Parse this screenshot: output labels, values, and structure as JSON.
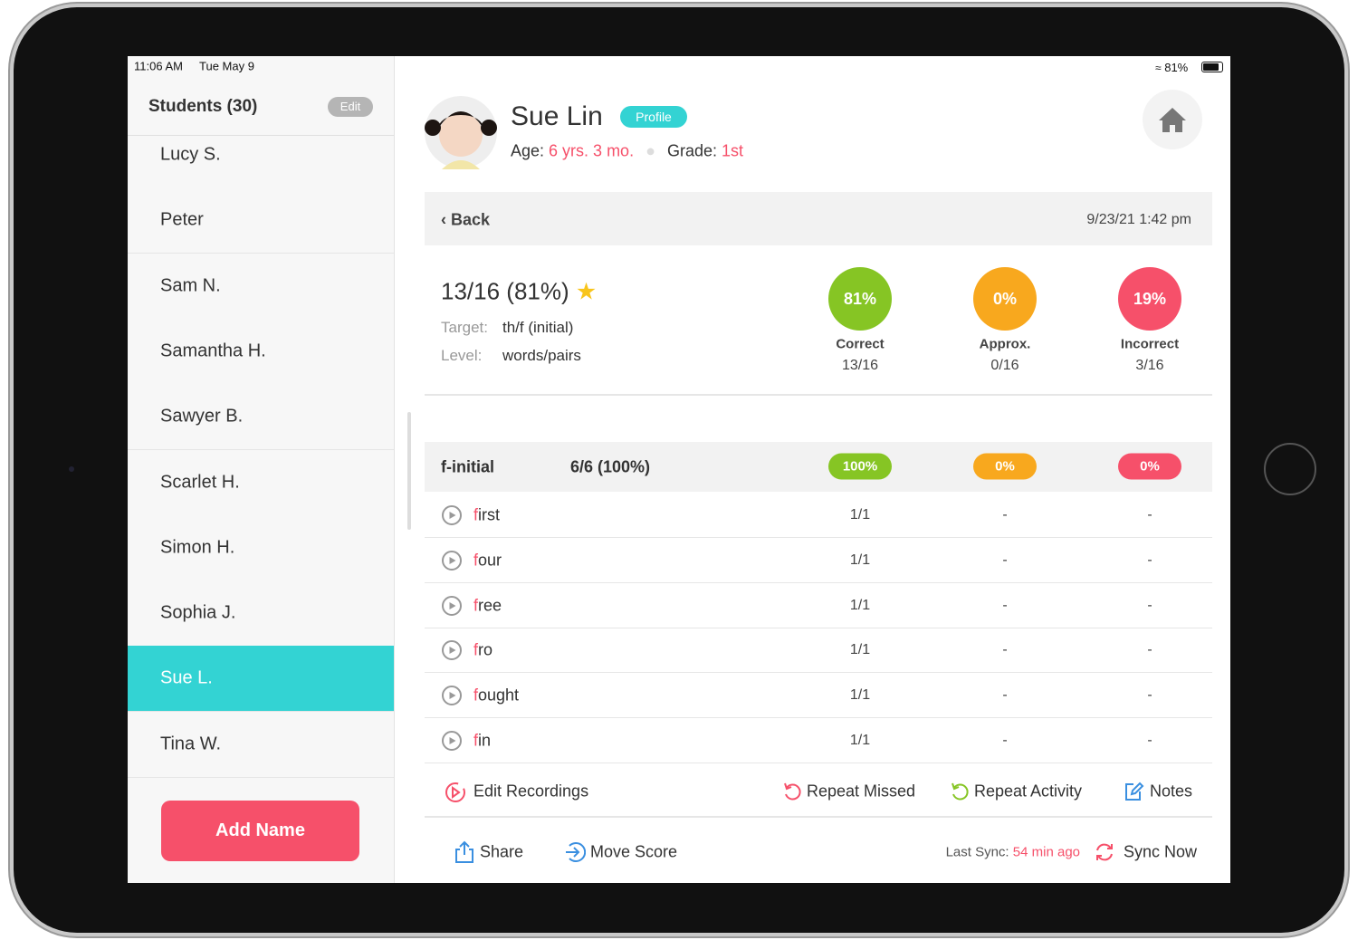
{
  "status_bar": {
    "time": "11:06 AM",
    "date": "Tue May 9",
    "battery": "81%"
  },
  "sidebar": {
    "title": "Students (30)",
    "edit": "Edit",
    "students": [
      {
        "name": "Lucy S."
      },
      {
        "name": "Peter"
      },
      {
        "name": "Sam N."
      },
      {
        "name": "Samantha H."
      },
      {
        "name": "Sawyer B."
      },
      {
        "name": "Scarlet H."
      },
      {
        "name": "Simon H."
      },
      {
        "name": "Sophia J."
      },
      {
        "name": "Sue L.",
        "selected": true
      },
      {
        "name": "Tina W."
      }
    ],
    "add_button": "Add Name"
  },
  "profile": {
    "name": "Sue Lin",
    "badge": "Profile",
    "age_label": "Age:",
    "age": "6 yrs. 3 mo.",
    "grade_label": "Grade:",
    "grade": "1st"
  },
  "session": {
    "back": "Back",
    "timestamp": "9/23/21 1:42 pm",
    "score": "13/16 (81%)",
    "target_label": "Target:",
    "target": "th/f (initial)",
    "level_label": "Level:",
    "level": "words/pairs",
    "stats": [
      {
        "percent": "81%",
        "label": "Correct",
        "count": "13/16",
        "color": "#86c524"
      },
      {
        "percent": "0%",
        "label": "Approx.",
        "count": "0/16",
        "color": "#f8a81e"
      },
      {
        "percent": "19%",
        "label": "Incorrect",
        "count": "3/16",
        "color": "#f6506a"
      }
    ]
  },
  "group": {
    "name": "f-initial",
    "score": "6/6 (100%)",
    "pills": [
      "100%",
      "0%",
      "0%"
    ]
  },
  "words": [
    {
      "target": "f",
      "rest": "irst",
      "correct": "1/1",
      "approx": "-",
      "incorrect": "-"
    },
    {
      "target": "f",
      "rest": "our",
      "correct": "1/1",
      "approx": "-",
      "incorrect": "-"
    },
    {
      "target": "f",
      "rest": "ree",
      "correct": "1/1",
      "approx": "-",
      "incorrect": "-"
    },
    {
      "target": "f",
      "rest": "ro",
      "correct": "1/1",
      "approx": "-",
      "incorrect": "-"
    },
    {
      "target": "f",
      "rest": "ought",
      "correct": "1/1",
      "approx": "-",
      "incorrect": "-"
    },
    {
      "target": "f",
      "rest": "in",
      "correct": "1/1",
      "approx": "-",
      "incorrect": "-"
    }
  ],
  "actions": [
    "Edit Recordings",
    "Repeat Missed",
    "Repeat Activity",
    "Notes"
  ],
  "footer": {
    "share": "Share",
    "move": "Move Score",
    "sync_label": "Last Sync:",
    "sync_time": "54 min ago",
    "sync_now": "Sync Now"
  }
}
